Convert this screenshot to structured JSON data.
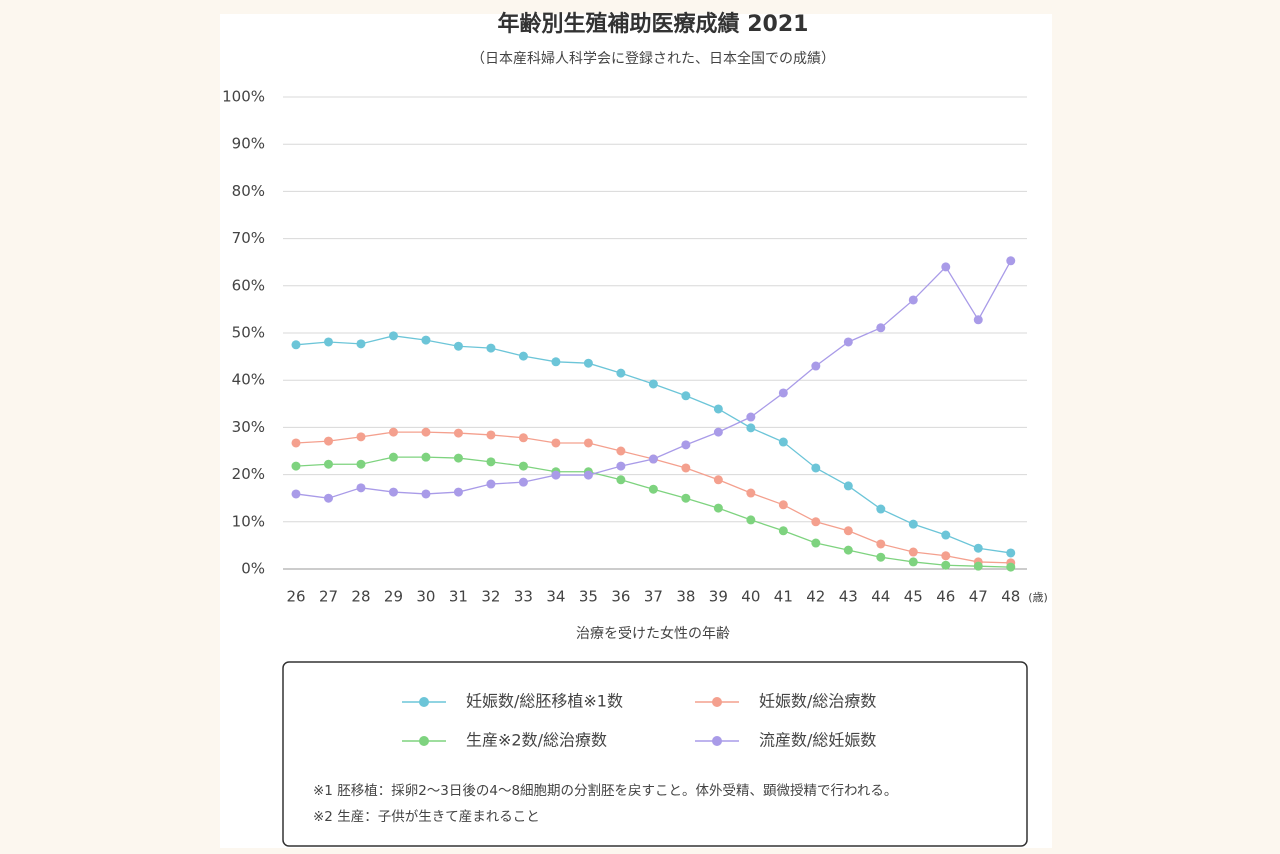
{
  "chart_data": {
    "type": "line",
    "title": "年齢別生殖補助医療成績 2021",
    "subtitle": "（日本産科婦人科学会に登録された、日本全国での成績）",
    "x_label": "治療を受けた女性の年齢",
    "x_unit": "(歳)",
    "x": [
      26,
      27,
      28,
      29,
      30,
      31,
      32,
      33,
      34,
      35,
      36,
      37,
      38,
      39,
      40,
      41,
      42,
      43,
      44,
      45,
      46,
      47,
      48
    ],
    "xlim": [
      25.6,
      48.5
    ],
    "xticks": [
      26,
      27,
      28,
      29,
      30,
      31,
      32,
      33,
      34,
      35,
      36,
      37,
      38,
      39,
      40,
      41,
      42,
      43,
      44,
      45,
      46,
      47,
      48
    ],
    "ylim": [
      0,
      100
    ],
    "yticks": [
      {
        "value": 0,
        "label": "0%"
      },
      {
        "value": 10,
        "label": "10%"
      },
      {
        "value": 20,
        "label": "20%"
      },
      {
        "value": 30,
        "label": "30%"
      },
      {
        "value": 40,
        "label": "40%"
      },
      {
        "value": 50,
        "label": "50%"
      },
      {
        "value": 60,
        "label": "60%"
      },
      {
        "value": 70,
        "label": "70%"
      },
      {
        "value": 80,
        "label": "80%"
      },
      {
        "value": 90,
        "label": "90%"
      },
      {
        "value": 100,
        "label": "100%"
      }
    ],
    "grid": true,
    "series": [
      {
        "name": "妊娠数/総胚移植※1数",
        "color": "#6cc5d8",
        "values": [
          47.5,
          48.1,
          47.7,
          49.4,
          48.5,
          47.2,
          46.8,
          45.1,
          43.9,
          43.6,
          41.5,
          39.2,
          36.7,
          33.9,
          29.9,
          26.9,
          21.4,
          17.6,
          12.7,
          9.5,
          7.2,
          4.4,
          3.4
        ]
      },
      {
        "name": "妊娠数/総治療数",
        "color": "#f4a08e",
        "values": [
          26.7,
          27.1,
          28.0,
          29.0,
          29.0,
          28.8,
          28.4,
          27.8,
          26.7,
          26.7,
          25.0,
          23.3,
          21.4,
          18.9,
          16.1,
          13.6,
          10.0,
          8.1,
          5.3,
          3.6,
          2.8,
          1.5,
          1.3
        ]
      },
      {
        "name": "生産※2数/総治療数",
        "color": "#7ed37f",
        "values": [
          21.8,
          22.2,
          22.2,
          23.7,
          23.7,
          23.5,
          22.7,
          21.8,
          20.6,
          20.6,
          18.9,
          16.9,
          15.0,
          12.9,
          10.4,
          8.1,
          5.5,
          4.0,
          2.5,
          1.5,
          0.8,
          0.6,
          0.4
        ]
      },
      {
        "name": "流産数/総妊娠数",
        "color": "#a99be8",
        "values": [
          15.9,
          15.0,
          17.2,
          16.3,
          15.9,
          16.3,
          18.0,
          18.4,
          19.9,
          19.9,
          21.8,
          23.3,
          26.3,
          29.0,
          32.2,
          37.3,
          43.0,
          48.1,
          51.1,
          57.0,
          64.0,
          52.8,
          65.3
        ]
      }
    ],
    "notes": [
      "※1 胚移植：採卵2〜3日後の4〜8細胞期の分割胚を戻すこと。体外受精、顕微授精で行われる。",
      "※2 生産：子供が生きて産まれること"
    ]
  }
}
